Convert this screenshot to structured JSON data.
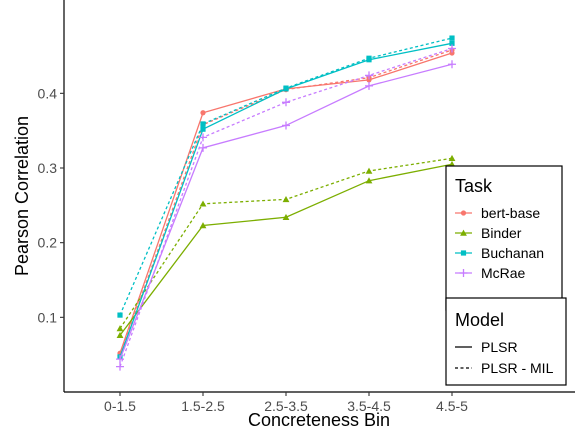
{
  "chart_data": {
    "type": "line",
    "xlabel": "Concreteness Bin",
    "ylabel": "Pearson Correlation",
    "categories": [
      "0-1.5",
      "1.5-2.5",
      "2.5-3.5",
      "3.5-4.5",
      "4.5-5"
    ],
    "ylim": [
      0.0,
      0.525
    ],
    "yticks": [
      0.1,
      0.2,
      0.3,
      0.4
    ],
    "grid": false,
    "series": [
      {
        "name": "bert-base",
        "model": "PLSR",
        "color": "#F8766D",
        "marker": "circle",
        "linestyle": "solid",
        "values": [
          0.052,
          0.374,
          0.406,
          0.418,
          0.454
        ]
      },
      {
        "name": "bert-base",
        "model": "PLSR - MIL",
        "color": "#F8766D",
        "marker": "circle",
        "linestyle": "dotted",
        "values": [
          0.049,
          0.358,
          0.405,
          0.421,
          0.458
        ]
      },
      {
        "name": "Binder",
        "model": "PLSR",
        "color": "#7CAE00",
        "marker": "triangle",
        "linestyle": "solid",
        "values": [
          0.076,
          0.223,
          0.234,
          0.283,
          0.305
        ]
      },
      {
        "name": "Binder",
        "model": "PLSR - MIL",
        "color": "#7CAE00",
        "marker": "triangle",
        "linestyle": "dotted",
        "values": [
          0.085,
          0.252,
          0.258,
          0.296,
          0.313
        ]
      },
      {
        "name": "Buchanan",
        "model": "PLSR",
        "color": "#00BFC4",
        "marker": "square",
        "linestyle": "solid",
        "values": [
          0.047,
          0.352,
          0.406,
          0.445,
          0.467
        ]
      },
      {
        "name": "Buchanan",
        "model": "PLSR - MIL",
        "color": "#00BFC4",
        "marker": "square",
        "linestyle": "dotted",
        "values": [
          0.103,
          0.359,
          0.407,
          0.447,
          0.474
        ]
      },
      {
        "name": "McRae",
        "model": "PLSR",
        "color": "#C77CFF",
        "marker": "plus",
        "linestyle": "solid",
        "values": [
          0.044,
          0.327,
          0.357,
          0.41,
          0.439
        ]
      },
      {
        "name": "McRae",
        "model": "PLSR - MIL",
        "color": "#C77CFF",
        "marker": "plus",
        "linestyle": "dotted",
        "values": [
          0.034,
          0.341,
          0.388,
          0.424,
          0.46
        ]
      }
    ],
    "legends": {
      "task": {
        "title": "Task",
        "placement": "right",
        "items": [
          {
            "label": "bert-base",
            "color": "#F8766D",
            "marker": "circle"
          },
          {
            "label": "Binder",
            "color": "#7CAE00",
            "marker": "triangle"
          },
          {
            "label": "Buchanan",
            "color": "#00BFC4",
            "marker": "square"
          },
          {
            "label": "McRae",
            "color": "#C77CFF",
            "marker": "plus"
          }
        ]
      },
      "model": {
        "title": "Model",
        "placement": "bottom-right",
        "items": [
          {
            "label": "PLSR",
            "linestyle": "solid"
          },
          {
            "label": "PLSR - MIL",
            "linestyle": "dotted"
          }
        ]
      }
    }
  }
}
